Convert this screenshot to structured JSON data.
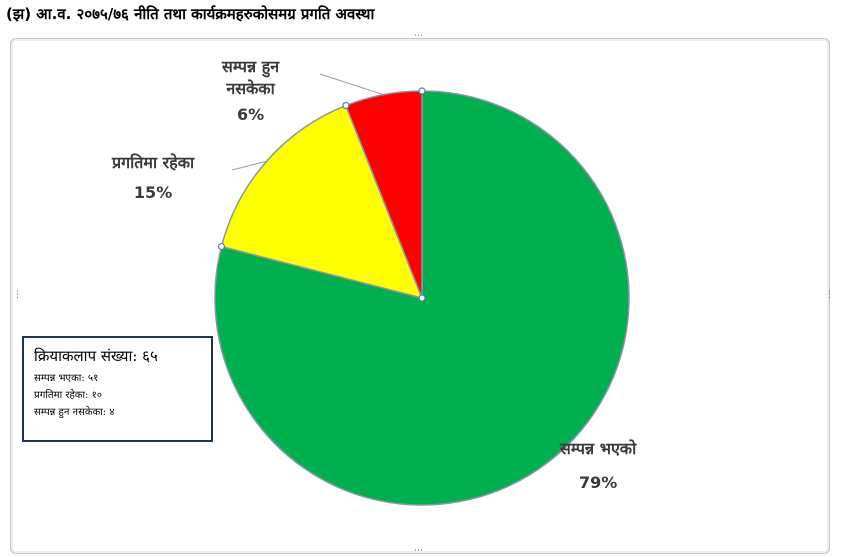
{
  "heading": "(झ) आ.व. २०७५/७६ नीति तथा कार्यक्रमहरुकोसमग्र प्रगति अवस्था",
  "colors": {
    "completed": "#00b050",
    "in_progress": "#ffff00",
    "not_completed": "#ff0000"
  },
  "chart_data": {
    "type": "pie",
    "title": "",
    "slices": [
      {
        "label": "सम्पन्न भएको",
        "label_lines": [
          "सम्पन्न भएको"
        ],
        "value": 79,
        "value_text": "79%",
        "color": "#00b050"
      },
      {
        "label": "प्रगतिमा रहेका",
        "label_lines": [
          "प्रगतिमा रहेका"
        ],
        "value": 15,
        "value_text": "15%",
        "color": "#ffff00"
      },
      {
        "label": "सम्पन्न हुन नसकेका",
        "label_lines": [
          "सम्पन्न हुन",
          "नसकेका"
        ],
        "value": 6,
        "value_text": "6%",
        "color": "#ff0000"
      }
    ],
    "start_angle_deg": 0,
    "direction": "clockwise"
  },
  "summary_box": {
    "title": "क्रियाकलाप संख्या: ६५",
    "rows": [
      "सम्पन्न भएका: ५१",
      "प्रगतिमा रहेका: १०",
      "सम्पन्न हुन नसकेका: ४"
    ]
  }
}
